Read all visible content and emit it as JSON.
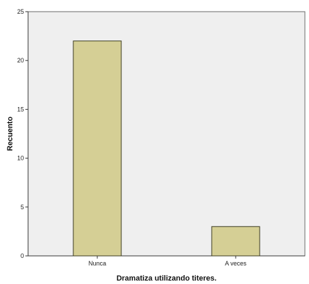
{
  "chart_data": {
    "type": "bar",
    "categories": [
      "Nunca",
      "A veces"
    ],
    "values": [
      22,
      3
    ],
    "xlabel": "Dramatiza utilizando titeres.",
    "ylabel": "Recuento",
    "ylim": [
      0,
      25
    ],
    "yticks": [
      0,
      5,
      10,
      15,
      20,
      25
    ],
    "grid": false,
    "colors": {
      "plot_background": "#efefef",
      "bar_fill": "#d5cf95",
      "bar_stroke": "#3a3a1e",
      "axis": "#333333"
    }
  }
}
